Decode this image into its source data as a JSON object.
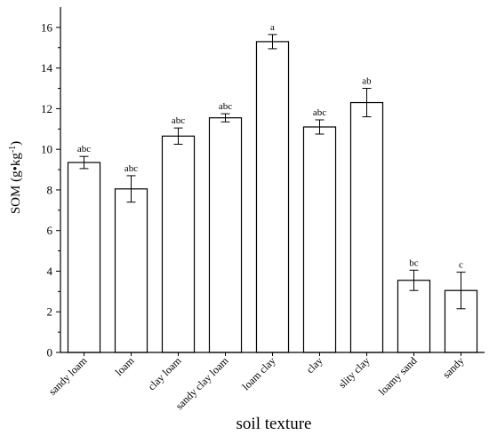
{
  "chart_data": {
    "type": "bar",
    "xlabel": "soil texture",
    "ylabel": {
      "text": "SOM (g•kg",
      "superscript": "-1",
      "suffix": ")"
    },
    "ylim": [
      0,
      17
    ],
    "yticks": [
      "0",
      "2",
      "4",
      "6",
      "8",
      "10",
      "12",
      "14",
      "16"
    ],
    "categories": [
      "sandy loam",
      "loam",
      "clay loam",
      "sandy clay loam",
      "loam clay",
      "clay",
      "slity clay",
      "loamy sand",
      "sandy"
    ],
    "values": [
      9.35,
      8.05,
      10.65,
      11.55,
      15.3,
      11.1,
      12.3,
      3.55,
      3.05
    ],
    "errors": [
      0.3,
      0.65,
      0.4,
      0.2,
      0.35,
      0.35,
      0.7,
      0.5,
      0.9
    ],
    "significance": [
      "abc",
      "abc",
      "abc",
      "abc",
      "a",
      "abc",
      "ab",
      "bc",
      "c"
    ],
    "grid": false,
    "bar_fill": "#ffffff",
    "bar_stroke": "#000000"
  }
}
